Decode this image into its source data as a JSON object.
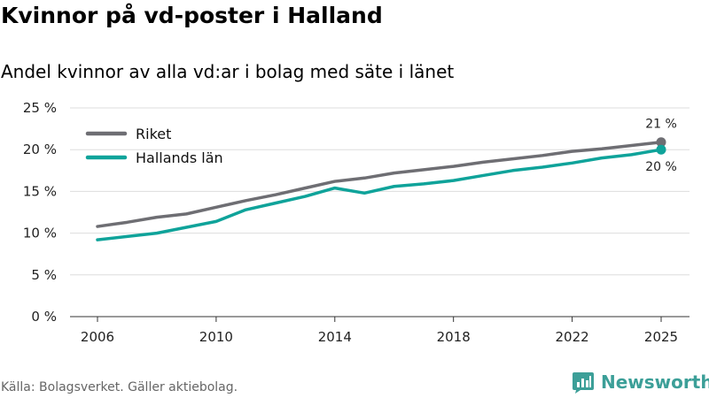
{
  "header": {
    "title": "Kvinnor på vd-poster i Halland",
    "subtitle": "Andel kvinnor av alla vd:ar i bolag med säte i länet"
  },
  "footer": {
    "source": "Källa: Bolagsverket. Gäller aktiebolag.",
    "brand": "Newsworthy",
    "brand_icon": "newsworthy-logo-icon",
    "brand_color": "#3c9f98"
  },
  "chart_data": {
    "type": "line",
    "title": "Kvinnor på vd-poster i Halland",
    "subtitle": "Andel kvinnor av alla vd:ar i bolag med säte i länet",
    "xlabel": "",
    "ylabel": "",
    "x": [
      2006,
      2007,
      2008,
      2009,
      2010,
      2011,
      2012,
      2013,
      2014,
      2015,
      2016,
      2017,
      2018,
      2019,
      2020,
      2021,
      2022,
      2023,
      2024,
      2025
    ],
    "x_ticks": [
      2006,
      2010,
      2014,
      2018,
      2022,
      2025
    ],
    "x_tick_labels": [
      "2006",
      "2010",
      "2014",
      "2018",
      "2022",
      "2025"
    ],
    "ylim": [
      0,
      25
    ],
    "y_ticks": [
      0,
      5,
      10,
      15,
      20,
      25
    ],
    "y_tick_labels": [
      "0 %",
      "5 %",
      "10 %",
      "15 %",
      "20 %",
      "25 %"
    ],
    "grid": true,
    "legend_position": "top-left",
    "series": [
      {
        "name": "Riket",
        "color": "#6e6e73",
        "values": [
          10.8,
          11.3,
          11.9,
          12.3,
          13.1,
          13.9,
          14.6,
          15.4,
          16.2,
          16.6,
          17.2,
          17.6,
          18.0,
          18.5,
          18.9,
          19.3,
          19.8,
          20.1,
          20.5,
          20.9
        ],
        "end_label": "21 %"
      },
      {
        "name": "Hallands län",
        "color": "#0fa39a",
        "values": [
          9.2,
          9.6,
          10.0,
          10.7,
          11.4,
          12.8,
          13.6,
          14.4,
          15.4,
          14.8,
          15.6,
          15.9,
          16.3,
          16.9,
          17.5,
          17.9,
          18.4,
          19.0,
          19.4,
          20.0
        ],
        "end_label": "20 %"
      }
    ]
  }
}
